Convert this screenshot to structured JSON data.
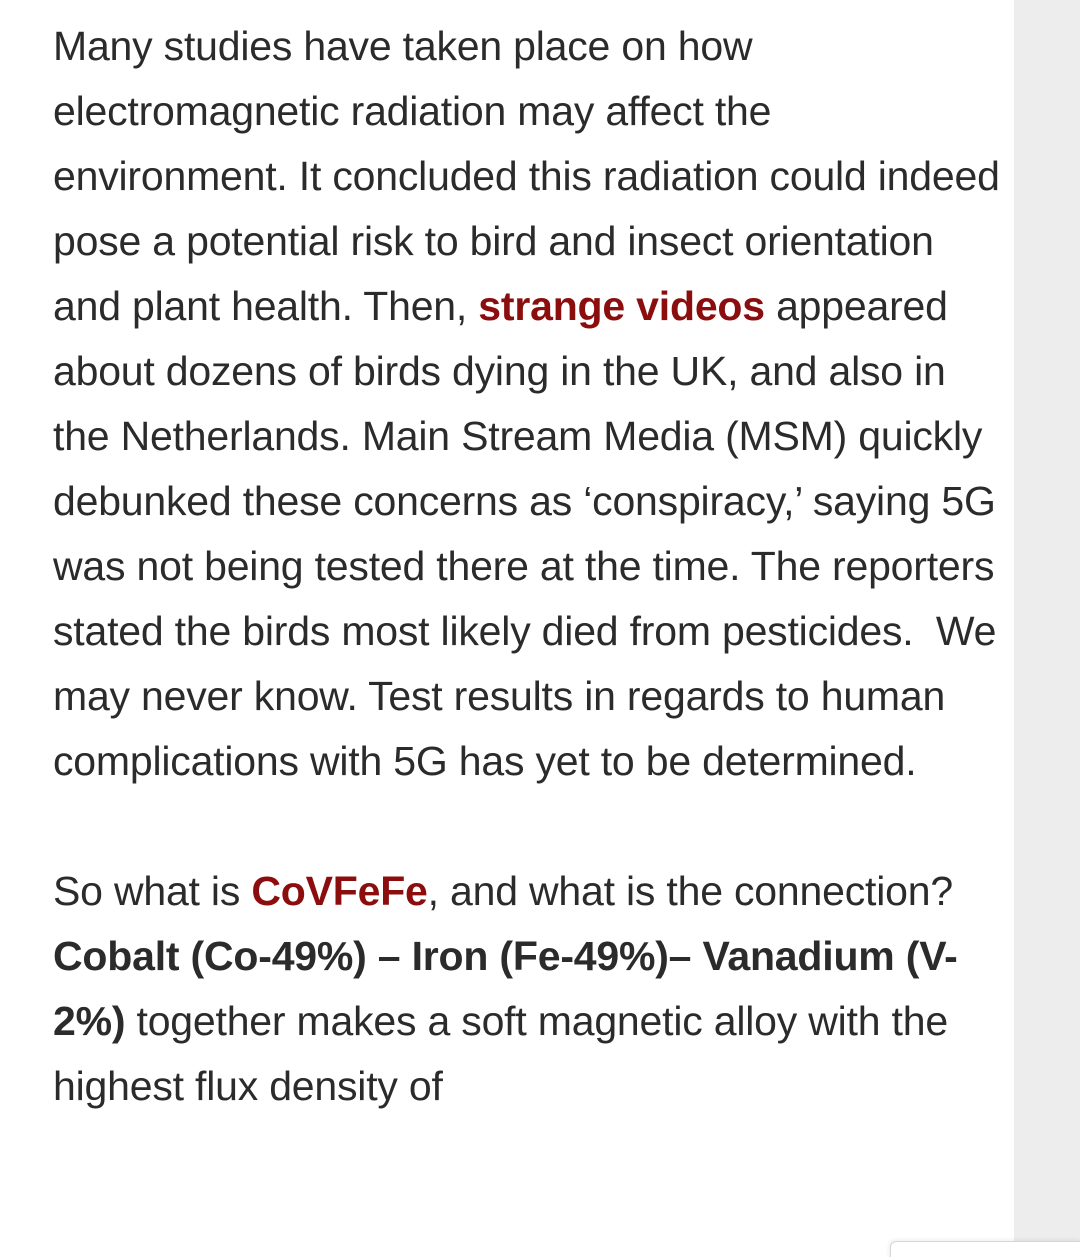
{
  "article": {
    "paragraph1": {
      "before_link": "Many studies have taken place on how electromagnetic radiation may affect the environment. It concluded this radiation could indeed pose a potential risk to bird and insect orientation and plant health. Then, ",
      "link_text": "strange videos",
      "after_link": " appeared about dozens of birds dying in the UK, and also in the Netherlands. Main Stream Media (MSM) quickly debunked these concerns as ‘conspiracy,’ saying 5G was not being tested there at the time. The reporters stated the birds most likely died from pesticides.  We may never know. Test results in regards to human complications with 5G has yet to be determined."
    },
    "paragraph2": {
      "intro": "So what is ",
      "link_text": "CoVFeFe",
      "middle": ", and what is the connection? ",
      "bold_text": "Cobalt (Co-49%) – Iron (Fe-49%)– Vanadium (V-2%)",
      "after_bold": " together makes a soft magnetic alloy with the highest flux density of"
    }
  },
  "colors": {
    "link": "#8b0d0d",
    "text": "#2b2b2b",
    "rail": "#ededed",
    "background": "#ffffff"
  }
}
